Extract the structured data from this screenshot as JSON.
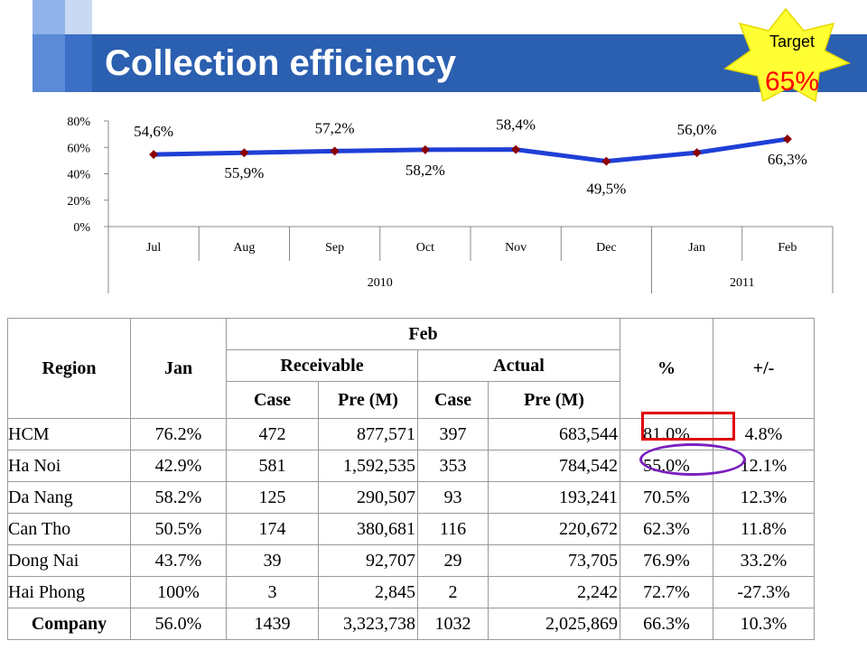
{
  "title": "Collection efficiency",
  "badge": {
    "label": "Target",
    "value": "65%"
  },
  "colors": {
    "title_band": "#2b5fb0",
    "line": "#1f3fd6",
    "marker": "#8b0000",
    "badge_fill": "#ffff33",
    "highlight_box": "#e00000",
    "highlight_ellipse": "#7a1fbf"
  },
  "chart_data": {
    "type": "line",
    "categories": [
      "Jul",
      "Aug",
      "Sep",
      "Oct",
      "Nov",
      "Dec",
      "Jan",
      "Feb"
    ],
    "groups": [
      {
        "label": "2010",
        "span": 6
      },
      {
        "label": "2011",
        "span": 2
      }
    ],
    "values": [
      54.6,
      55.9,
      57.2,
      58.2,
      58.4,
      49.5,
      56.0,
      66.3
    ],
    "data_labels": [
      "54,6%",
      "55,9%",
      "57,2%",
      "58,2%",
      "58,4%",
      "49,5%",
      "56,0%",
      "66,3%"
    ],
    "yticks": [
      "0%",
      "20%",
      "40%",
      "60%",
      "80%"
    ],
    "ylim": [
      0,
      80
    ],
    "grid": false,
    "legend": "none"
  },
  "table": {
    "headers": {
      "region": "Region",
      "jan": "Jan",
      "feb": "Feb",
      "pct": "%",
      "diff": "+/-",
      "receivable": "Receivable",
      "actual": "Actual",
      "case1": "Case",
      "pre1": "Pre (M)",
      "case2": "Case",
      "pre2": "Pre (M)"
    },
    "rows": [
      [
        "HCM",
        "76.2%",
        "472",
        "877,571",
        "397",
        "683,544",
        "81.0%",
        "4.8%"
      ],
      [
        "Ha Noi",
        "42.9%",
        "581",
        "1,592,535",
        "353",
        "784,542",
        "55.0%",
        "12.1%"
      ],
      [
        "Da Nang",
        "58.2%",
        "125",
        "290,507",
        "93",
        "193,241",
        "70.5%",
        "12.3%"
      ],
      [
        "Can Tho",
        "50.5%",
        "174",
        "380,681",
        "116",
        "220,672",
        "62.3%",
        "11.8%"
      ],
      [
        "Dong Nai",
        "43.7%",
        "39",
        "92,707",
        "29",
        "73,705",
        "76.9%",
        "33.2%"
      ],
      [
        "Hai Phong",
        "100%",
        "3",
        "2,845",
        "2",
        "2,242",
        "72.7%",
        "-27.3%"
      ],
      [
        "Company",
        "56.0%",
        "1439",
        "3,323,738",
        "1032",
        "2,025,869",
        "66.3%",
        "10.3%"
      ]
    ]
  }
}
